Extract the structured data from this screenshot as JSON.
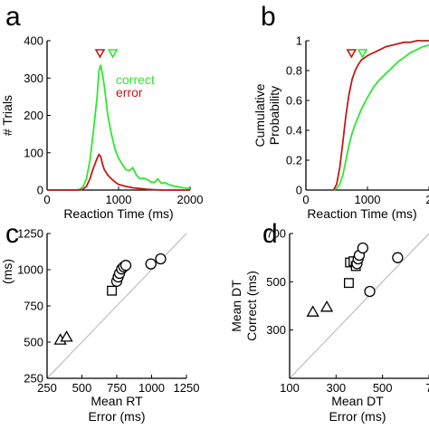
{
  "colors": {
    "correct": "#2ee82e",
    "error": "#c21a1a",
    "axis": "#000000",
    "identity": "#b4b4b4"
  },
  "chart_data": [
    {
      "panel": "a",
      "type": "line",
      "xlabel": "Reaction Time (ms)",
      "ylabel": "# Trials",
      "xlim": [
        0,
        2000
      ],
      "ylim": [
        0,
        400
      ],
      "xticks": [
        "0",
        "1000",
        "2000"
      ],
      "yticks": [
        "0",
        "100",
        "200",
        "300",
        "400"
      ],
      "legend": {
        "placement": "top-right",
        "entries": [
          "correct",
          "error"
        ]
      },
      "markers": [
        {
          "series": "error",
          "x": 740,
          "shape": "down-triangle"
        },
        {
          "series": "correct",
          "x": 920,
          "shape": "down-triangle"
        }
      ],
      "series": [
        {
          "name": "correct",
          "x": [
            0,
            400,
            450,
            500,
            550,
            600,
            650,
            700,
            725,
            750,
            775,
            800,
            850,
            900,
            950,
            1000,
            1050,
            1100,
            1150,
            1200,
            1250,
            1300,
            1350,
            1400,
            1450,
            1500,
            1550,
            1600,
            1650,
            1700,
            1750,
            1800,
            1850,
            1900,
            1950,
            2000
          ],
          "y": [
            0,
            0,
            2,
            8,
            30,
            80,
            160,
            250,
            320,
            335,
            310,
            280,
            200,
            150,
            110,
            85,
            70,
            55,
            52,
            60,
            40,
            30,
            32,
            28,
            22,
            20,
            30,
            18,
            20,
            15,
            12,
            10,
            8,
            6,
            5,
            4
          ]
        },
        {
          "name": "error",
          "x": [
            0,
            450,
            500,
            550,
            600,
            650,
            700,
            725,
            750,
            775,
            800,
            850,
            900,
            950,
            1000,
            1100,
            1200,
            1300,
            1400,
            1500,
            1600,
            2000
          ],
          "y": [
            0,
            0,
            2,
            10,
            30,
            60,
            85,
            95,
            90,
            70,
            55,
            40,
            30,
            22,
            15,
            10,
            6,
            4,
            2,
            1,
            0,
            0
          ]
        }
      ]
    },
    {
      "panel": "b",
      "type": "line",
      "xlabel": "Reaction Time (ms)",
      "ylabel": "Cumulative Probability",
      "xlim": [
        0,
        2000
      ],
      "ylim": [
        0,
        1
      ],
      "xticks": [
        "0",
        "1000",
        "2"
      ],
      "yticks": [
        "0",
        "0.2",
        "0.4",
        "0.6",
        "0.8",
        "1"
      ],
      "markers": [
        {
          "series": "error",
          "x": 740,
          "shape": "down-triangle"
        },
        {
          "series": "correct",
          "x": 920,
          "shape": "down-triangle"
        }
      ],
      "series": [
        {
          "name": "correct",
          "x": [
            450,
            500,
            550,
            600,
            650,
            700,
            750,
            800,
            850,
            900,
            950,
            1000,
            1100,
            1200,
            1300,
            1400,
            1500,
            1600,
            1700,
            1800,
            1900,
            2000
          ],
          "y": [
            0,
            0.01,
            0.04,
            0.1,
            0.2,
            0.3,
            0.38,
            0.44,
            0.49,
            0.54,
            0.58,
            0.62,
            0.69,
            0.74,
            0.78,
            0.82,
            0.86,
            0.89,
            0.92,
            0.94,
            0.96,
            0.97
          ]
        },
        {
          "name": "error",
          "x": [
            450,
            500,
            550,
            600,
            650,
            700,
            750,
            800,
            850,
            900,
            1000,
            1100,
            1200,
            1300,
            1400,
            1500,
            1600,
            1700,
            1800,
            2000
          ],
          "y": [
            0,
            0.04,
            0.15,
            0.32,
            0.5,
            0.64,
            0.74,
            0.8,
            0.84,
            0.87,
            0.9,
            0.92,
            0.94,
            0.96,
            0.97,
            0.98,
            0.99,
            0.99,
            1,
            1
          ]
        }
      ]
    },
    {
      "panel": "c",
      "type": "scatter",
      "xlabel": "Mean RT",
      "xlabel2": "Error (ms)",
      "ylabel": "(ms)",
      "xlim": [
        250,
        1250
      ],
      "ylim": [
        250,
        1250
      ],
      "xticks": [
        "250",
        "500",
        "750",
        "1000",
        "1250"
      ],
      "yticks": [
        "250",
        "500",
        "750",
        "1000",
        "1250"
      ],
      "identity_line": true,
      "points": [
        {
          "shape": "triangle",
          "x": 345,
          "y": 515
        },
        {
          "shape": "triangle",
          "x": 390,
          "y": 535
        },
        {
          "shape": "square",
          "x": 715,
          "y": 855
        },
        {
          "shape": "circle",
          "x": 750,
          "y": 920
        },
        {
          "shape": "circle",
          "x": 760,
          "y": 950
        },
        {
          "shape": "circle",
          "x": 770,
          "y": 975
        },
        {
          "shape": "circle",
          "x": 785,
          "y": 1005
        },
        {
          "shape": "circle",
          "x": 800,
          "y": 1020
        },
        {
          "shape": "circle",
          "x": 815,
          "y": 1030
        },
        {
          "shape": "circle",
          "x": 995,
          "y": 1040
        },
        {
          "shape": "circle",
          "x": 1065,
          "y": 1075
        }
      ]
    },
    {
      "panel": "d",
      "type": "scatter",
      "xlabel": "Mean DT",
      "xlabel2": "Error (ms)",
      "ylabel": "Mean DT",
      "ylabel2": "Correct (ms)",
      "xlim": [
        100,
        700
      ],
      "ylim": [
        100,
        700
      ],
      "xticks": [
        "100",
        "300",
        "500",
        "7"
      ],
      "yticks": [
        "300",
        "500",
        "700"
      ],
      "identity_line": true,
      "points": [
        {
          "shape": "triangle",
          "x": 200,
          "y": 375
        },
        {
          "shape": "triangle",
          "x": 260,
          "y": 395
        },
        {
          "shape": "square",
          "x": 355,
          "y": 495
        },
        {
          "shape": "square",
          "x": 360,
          "y": 580
        },
        {
          "shape": "square",
          "x": 375,
          "y": 585
        },
        {
          "shape": "square",
          "x": 385,
          "y": 565
        },
        {
          "shape": "circle",
          "x": 390,
          "y": 575
        },
        {
          "shape": "circle",
          "x": 395,
          "y": 595
        },
        {
          "shape": "circle",
          "x": 400,
          "y": 610
        },
        {
          "shape": "circle",
          "x": 415,
          "y": 640
        },
        {
          "shape": "circle",
          "x": 445,
          "y": 460
        },
        {
          "shape": "circle",
          "x": 565,
          "y": 600
        }
      ]
    }
  ]
}
